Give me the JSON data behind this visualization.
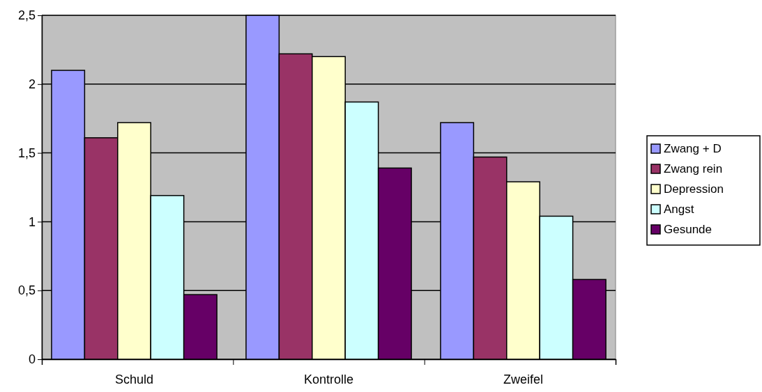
{
  "chart_data": {
    "type": "bar",
    "categories": [
      "Schuld",
      "Kontrolle",
      "Zweifel"
    ],
    "series": [
      {
        "name": "Zwang + D",
        "color": "#9999ff",
        "values": [
          2.1,
          2.5,
          1.72
        ]
      },
      {
        "name": "Zwang rein",
        "color": "#993366",
        "values": [
          1.61,
          2.22,
          1.47
        ]
      },
      {
        "name": "Depression",
        "color": "#ffffcc",
        "values": [
          1.72,
          2.2,
          1.29
        ]
      },
      {
        "name": "Angst",
        "color": "#ccffff",
        "values": [
          1.19,
          1.87,
          1.04
        ]
      },
      {
        "name": "Gesunde",
        "color": "#660066",
        "values": [
          0.47,
          1.39,
          0.58
        ]
      }
    ],
    "ylim": [
      0,
      2.5
    ],
    "yticks": [
      0,
      {
        "value": 0.5,
        "label": "0,5"
      },
      1,
      {
        "value": 1.5,
        "label": "1,5"
      },
      2,
      {
        "value": 2.5,
        "label": "2,5"
      }
    ],
    "grid": "y",
    "legend": "right"
  }
}
